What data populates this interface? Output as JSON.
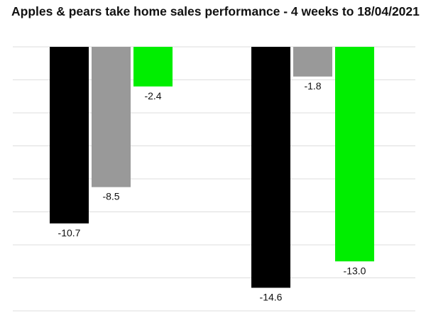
{
  "chart_data": {
    "type": "bar",
    "title": "Apples & pears take home sales performance - 4 weeks to 18/04/2021",
    "xlabel": "",
    "ylabel": "",
    "ylim": [
      -16,
      0
    ],
    "grid": true,
    "legend": "none",
    "groups": [
      {
        "values": [
          -10.7,
          -8.5,
          -2.4
        ],
        "labels": [
          "-10.7",
          "-8.5",
          "-2.4"
        ]
      },
      {
        "values": [
          -14.6,
          -1.8,
          -13.0
        ],
        "labels": [
          "-14.6",
          "-1.8",
          "-13.0"
        ]
      }
    ],
    "bar_colors": [
      "#000000",
      "#999999",
      "#00ee00"
    ]
  }
}
